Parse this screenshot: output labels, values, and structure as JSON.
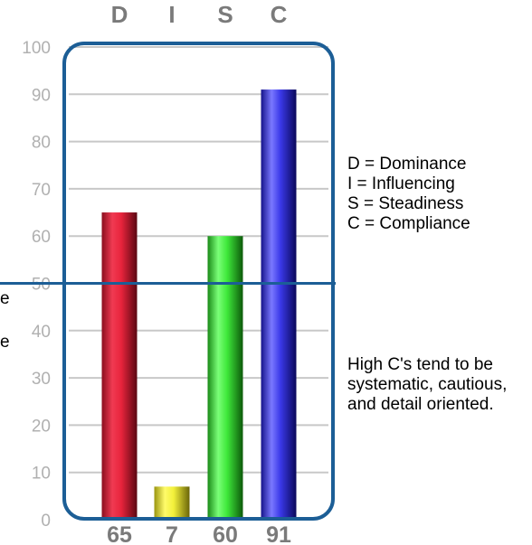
{
  "chart_data": {
    "type": "bar",
    "categories": [
      "D",
      "I",
      "S",
      "C"
    ],
    "values": [
      65,
      7,
      60,
      91
    ],
    "value_labels": [
      "65",
      "7",
      "60",
      "91"
    ],
    "ylim": [
      0,
      100
    ],
    "yticks": [
      "0",
      "10",
      "20",
      "30",
      "40",
      "50",
      "60",
      "70",
      "80",
      "90",
      "100"
    ],
    "reference_line": 50,
    "grid": true,
    "colors": [
      "#e8243c",
      "#f2f03a",
      "#3ee83a",
      "#3a38e8"
    ],
    "frame_color": "#1c5e96",
    "gridline_color": "#c8c8c8"
  },
  "legend": {
    "items": [
      "D = Dominance",
      "I = Influencing",
      "S = Steadiness",
      "C = Compliance"
    ]
  },
  "note": "High C's tend to be systematic, cautious, and detail oriented.",
  "edge_text": [
    "e",
    "e"
  ]
}
